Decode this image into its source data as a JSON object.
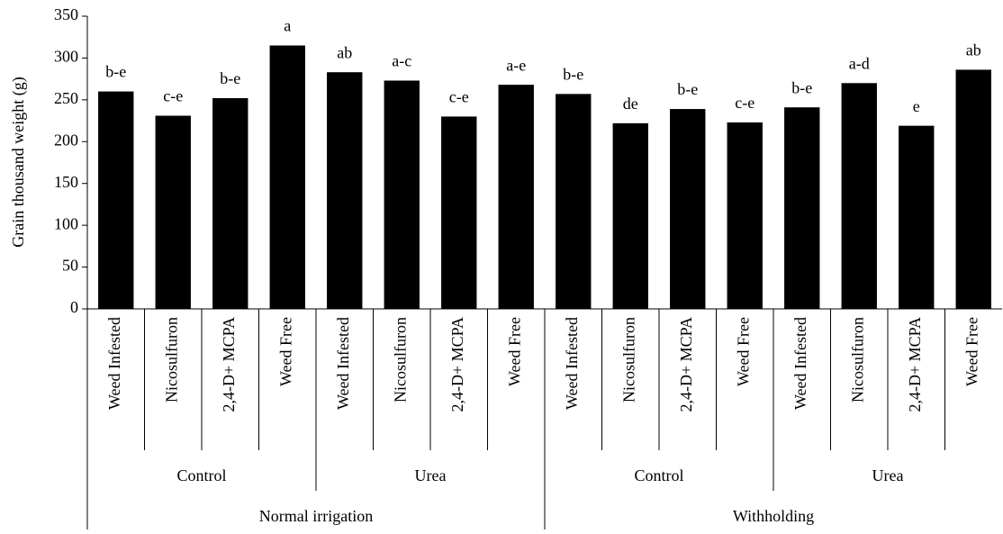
{
  "chart_data": {
    "type": "bar",
    "y_label": "Grain thousand weight (g)",
    "categories": [
      "Weed Infested",
      "Nicosulfuron",
      "2,4-D+ MCPA",
      "Weed Free",
      "Weed Infested",
      "Nicosulfuron",
      "2,4-D+ MCPA",
      "Weed Free",
      "Weed Infested",
      "Nicosulfuron",
      "2,4-D+ MCPA",
      "Weed Free",
      "Weed Infested",
      "Nicosulfuron",
      "2,4-D+ MCPA",
      "Weed Free"
    ],
    "subgroups": [
      "Control",
      "Urea",
      "Control",
      "Urea"
    ],
    "groups": [
      "Normal irrigation",
      "Withholding"
    ],
    "values": [
      260,
      231,
      252,
      315,
      283,
      273,
      230,
      268,
      257,
      222,
      239,
      223,
      241,
      270,
      219,
      286
    ],
    "letters": [
      "b-e",
      "c-e",
      "b-e",
      "a",
      "ab",
      "a-c",
      "c-e",
      "a-e",
      "b-e",
      "de",
      "b-e",
      "c-e",
      "b-e",
      "a-d",
      "e",
      "ab"
    ],
    "color": "#000000",
    "ylim": [
      0,
      350
    ],
    "yticks": [
      0,
      50,
      100,
      150,
      200,
      250,
      300,
      350
    ]
  }
}
